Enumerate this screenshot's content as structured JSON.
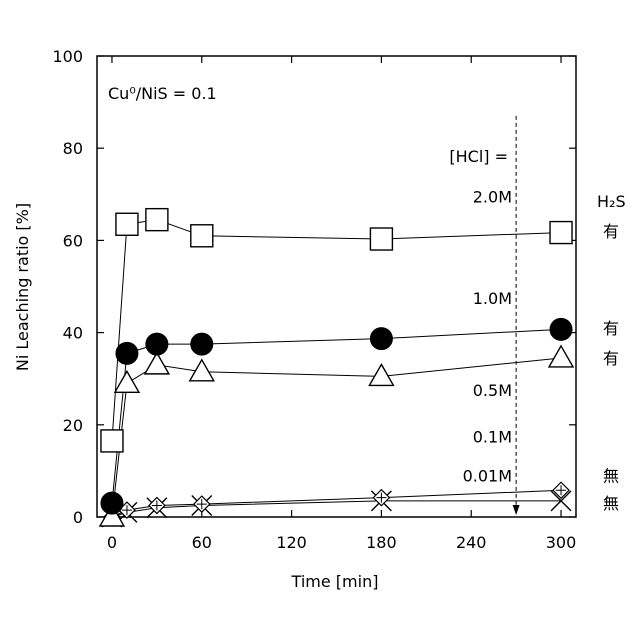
{
  "chart_data": {
    "type": "line",
    "xlabel": "Time [min]",
    "ylabel": "Ni Leaching ratio [%]",
    "xlim": [
      -10,
      310
    ],
    "ylim": [
      0,
      100
    ],
    "x_ticks": [
      0,
      60,
      120,
      180,
      240,
      300
    ],
    "y_ticks": [
      0,
      20,
      40,
      60,
      80,
      100
    ],
    "grid": false,
    "legend": "none",
    "annotations": {
      "ratio": "Cu⁰/NiS = 0.1",
      "hcl_header": "[HCl] =",
      "h2s_header": "H₂S",
      "hcl_levels": [
        {
          "label": "2.0M",
          "y": 69.5
        },
        {
          "label": "1.0M",
          "y": 47.5
        },
        {
          "label": "0.5M",
          "y": 27.5
        },
        {
          "label": "0.1M",
          "y": 17.5
        },
        {
          "label": "0.01M",
          "y": 9
        }
      ],
      "h2s_marks": [
        {
          "label": "有",
          "y": 62
        },
        {
          "label": "有",
          "y": 41
        },
        {
          "label": "有",
          "y": 34.5
        },
        {
          "label": "無",
          "y": 9
        },
        {
          "label": "無",
          "y": 3
        }
      ],
      "arrow_x": 270
    },
    "series": [
      {
        "name": "2.0M",
        "marker": "open-square",
        "x": [
          0,
          10,
          30,
          60,
          180,
          300
        ],
        "y": [
          16.5,
          63.5,
          64.5,
          61,
          60.3,
          61.7
        ]
      },
      {
        "name": "1.0M",
        "marker": "filled-circle",
        "x": [
          0,
          10,
          30,
          60,
          180,
          300
        ],
        "y": [
          3,
          35.5,
          37.5,
          37.5,
          38.7,
          40.7
        ]
      },
      {
        "name": "0.5M",
        "marker": "open-triangle",
        "x": [
          0,
          10,
          30,
          60,
          180,
          300
        ],
        "y": [
          0,
          29,
          33,
          31.5,
          30.5,
          34.5
        ]
      },
      {
        "name": "0.1M",
        "marker": "diamond-cross",
        "x": [
          0,
          10,
          30,
          60,
          180,
          300
        ],
        "y": [
          0,
          1.5,
          2.5,
          2.8,
          4.2,
          5.8
        ]
      },
      {
        "name": "0.01M",
        "marker": "x-cross",
        "x": [
          0,
          10,
          30,
          60,
          180,
          300
        ],
        "y": [
          0,
          1,
          2,
          2.5,
          3.5,
          3.5
        ]
      }
    ]
  }
}
